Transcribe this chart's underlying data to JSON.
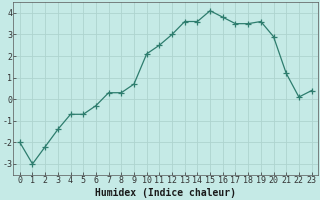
{
  "x": [
    0,
    1,
    2,
    3,
    4,
    5,
    6,
    7,
    8,
    9,
    10,
    11,
    12,
    13,
    14,
    15,
    16,
    17,
    18,
    19,
    20,
    21,
    22,
    23
  ],
  "y": [
    -2.0,
    -3.0,
    -2.2,
    -1.4,
    -0.7,
    -0.7,
    -0.3,
    0.3,
    0.3,
    0.7,
    2.1,
    2.5,
    3.0,
    3.6,
    3.6,
    4.1,
    3.8,
    3.5,
    3.5,
    3.6,
    2.9,
    1.2,
    0.1,
    0.4
  ],
  "line_color": "#2e7d6e",
  "marker": "+",
  "marker_size": 4,
  "marker_color": "#2e7d6e",
  "bg_color": "#c5eae6",
  "grid_color": "#aed4cf",
  "xlabel": "Humidex (Indice chaleur)",
  "xlabel_fontsize": 7,
  "tick_fontsize": 6,
  "ylim": [
    -3.5,
    4.5
  ],
  "xlim": [
    -0.5,
    23.5
  ],
  "yticks": [
    -3,
    -2,
    -1,
    0,
    1,
    2,
    3,
    4
  ],
  "xticks": [
    0,
    1,
    2,
    3,
    4,
    5,
    6,
    7,
    8,
    9,
    10,
    11,
    12,
    13,
    14,
    15,
    16,
    17,
    18,
    19,
    20,
    21,
    22,
    23
  ]
}
